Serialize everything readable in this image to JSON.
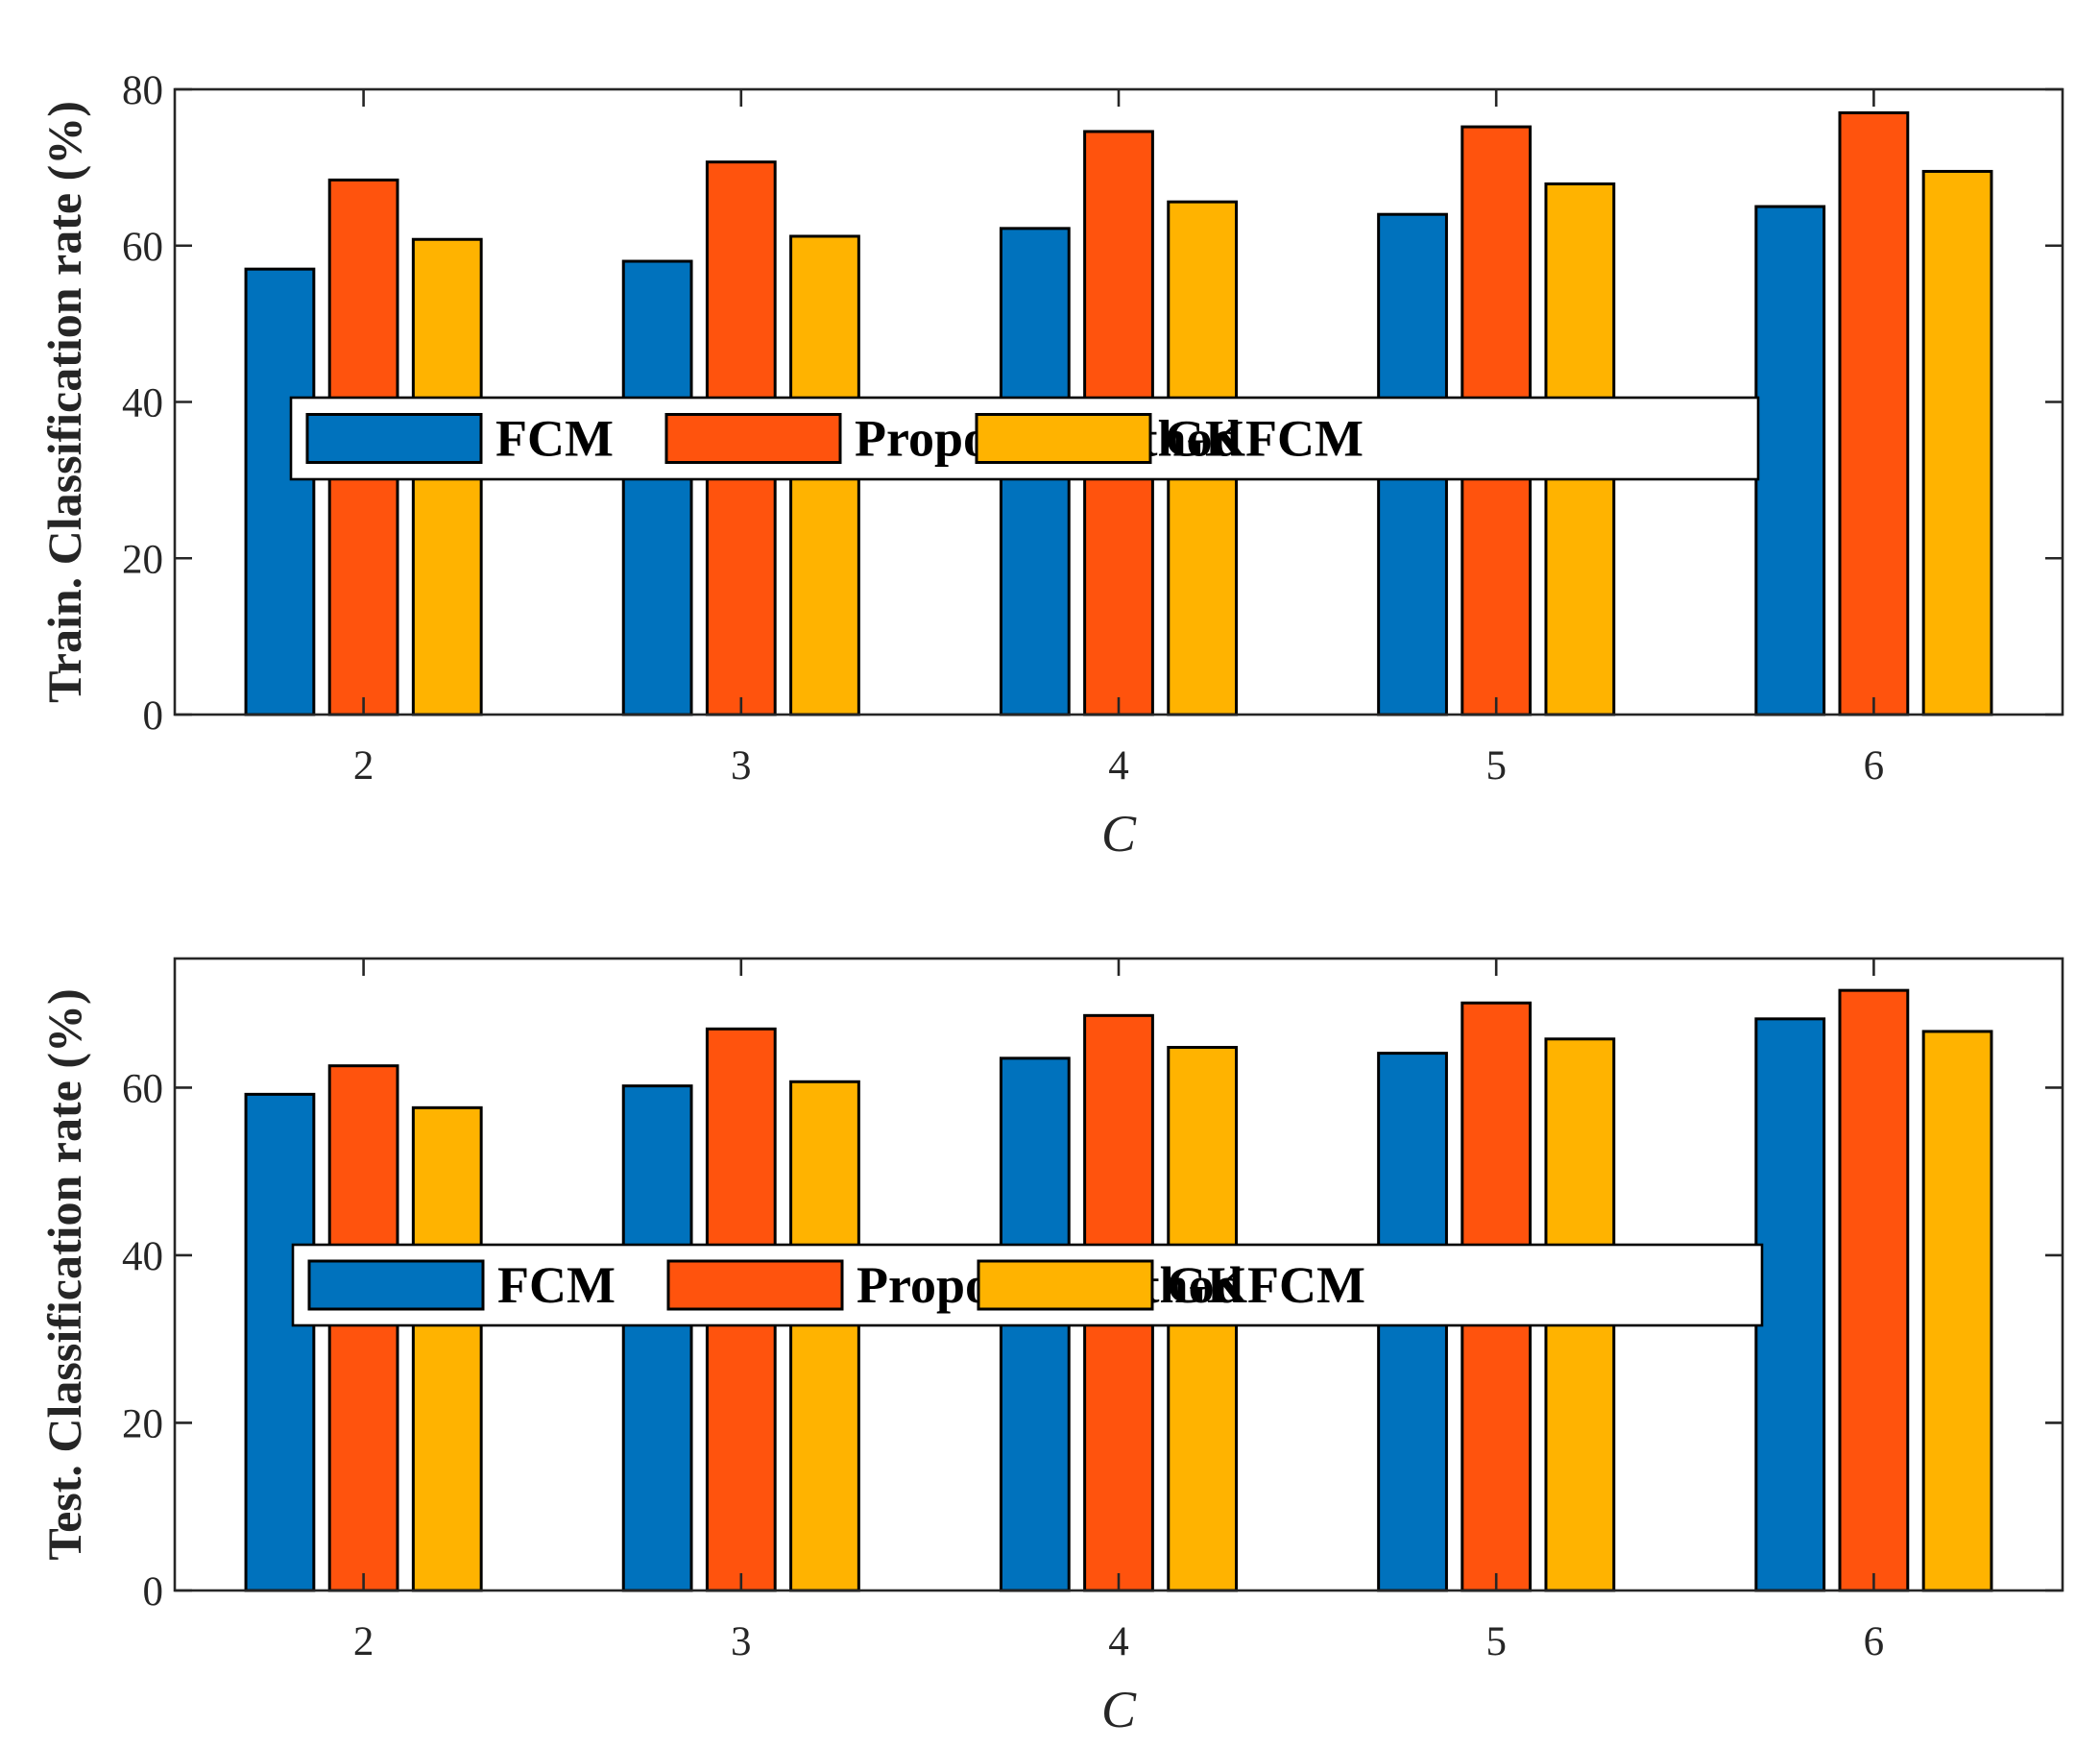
{
  "chart_data": [
    {
      "type": "bar",
      "categories": [
        "2",
        "3",
        "4",
        "5",
        "6"
      ],
      "series": [
        {
          "name": "FCM",
          "color": "#0072BD",
          "values": [
            57,
            58,
            62.2,
            64,
            65
          ]
        },
        {
          "name": "Proposed method",
          "color": "#FF530D",
          "values": [
            68.4,
            70.7,
            74.6,
            75.2,
            77
          ]
        },
        {
          "name": "GKFCM",
          "color": "#FFB300",
          "values": [
            60.8,
            61.2,
            65.6,
            67.9,
            69.5
          ]
        }
      ],
      "title": "",
      "xlabel": "C",
      "ylabel": "Train. Classification rate (%)",
      "ylim": [
        0,
        80
      ],
      "yticks": [
        0,
        20,
        40,
        60,
        80
      ],
      "legend": "center, horizontal, boxed",
      "grid": false
    },
    {
      "type": "bar",
      "categories": [
        "2",
        "3",
        "4",
        "5",
        "6"
      ],
      "series": [
        {
          "name": "FCM",
          "color": "#0072BD",
          "values": [
            59.2,
            60.2,
            63.5,
            64.1,
            68.2
          ]
        },
        {
          "name": "Proposed method",
          "color": "#FF530D",
          "values": [
            62.6,
            67,
            68.6,
            70.1,
            71.6
          ]
        },
        {
          "name": "GKFCM",
          "color": "#FFB300",
          "values": [
            57.6,
            60.7,
            64.8,
            65.8,
            66.7
          ]
        }
      ],
      "title": "",
      "xlabel": "C",
      "ylabel": "Test. Classification rate (%)",
      "ylim": [
        0,
        75.4
      ],
      "yticks": [
        0,
        20,
        40,
        60
      ],
      "legend": "center, horizontal, boxed",
      "grid": false
    }
  ]
}
